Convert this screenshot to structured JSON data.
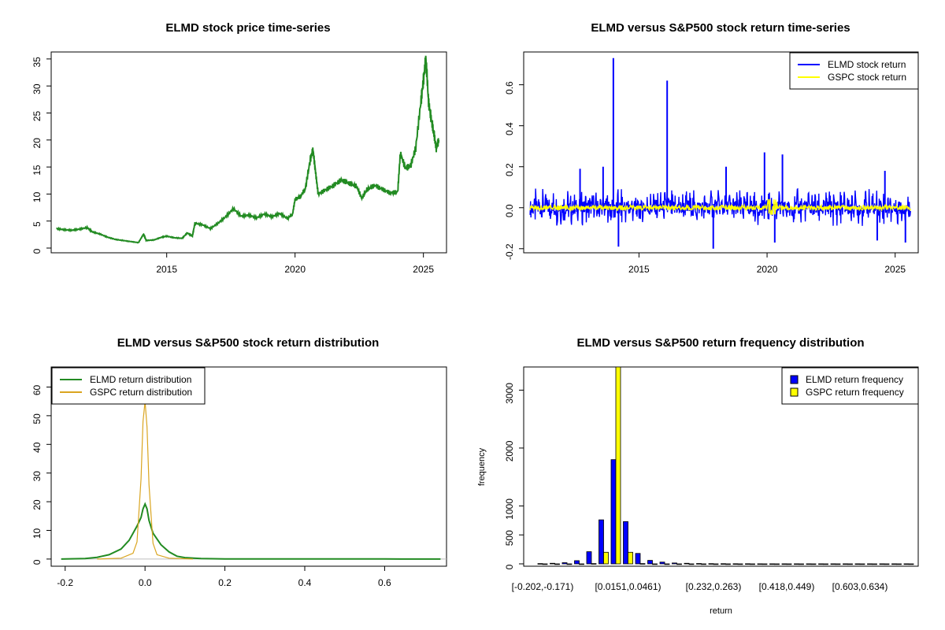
{
  "chart_data": [
    {
      "type": "line",
      "title": "ELMD stock price time-series",
      "xlabel": "",
      "ylabel": "",
      "xlim": [
        2010.5,
        2025.9
      ],
      "ylim": [
        0,
        36
      ],
      "xticks": [
        2015,
        2020,
        2025
      ],
      "xtick_labels": [
        "2015",
        "2020",
        "2025"
      ],
      "yticks": [
        0,
        5,
        10,
        15,
        20,
        25,
        30,
        35
      ],
      "ytick_labels": [
        "0",
        "5",
        "10",
        "15",
        "20",
        "25",
        "30",
        "35"
      ],
      "color": "#228B22",
      "series": [
        {
          "name": "ELMD price",
          "x": [
            2010.7,
            2011.0,
            2011.3,
            2011.6,
            2011.9,
            2012.1,
            2012.4,
            2012.7,
            2013.0,
            2013.3,
            2013.6,
            2013.9,
            2014.1,
            2014.2,
            2014.5,
            2014.8,
            2015.0,
            2015.3,
            2015.6,
            2015.8,
            2016.0,
            2016.1,
            2016.4,
            2016.7,
            2017.0,
            2017.3,
            2017.6,
            2017.9,
            2018.2,
            2018.5,
            2018.8,
            2019.1,
            2019.4,
            2019.7,
            2019.9,
            2020.0,
            2020.2,
            2020.4,
            2020.6,
            2020.7,
            2020.8,
            2020.9,
            2021.2,
            2021.5,
            2021.8,
            2022.1,
            2022.4,
            2022.6,
            2022.8,
            2023.1,
            2023.4,
            2023.7,
            2024.0,
            2024.1,
            2024.3,
            2024.5,
            2024.7,
            2024.9,
            2025.0,
            2025.1,
            2025.2,
            2025.3,
            2025.4,
            2025.5,
            2025.6
          ],
          "values": [
            3.6,
            3.4,
            3.3,
            3.5,
            3.8,
            3.0,
            2.6,
            2.0,
            1.6,
            1.4,
            1.2,
            1.0,
            2.6,
            1.4,
            1.5,
            2.0,
            2.2,
            1.9,
            1.8,
            2.8,
            2.2,
            4.6,
            4.3,
            3.6,
            4.6,
            5.8,
            7.3,
            5.9,
            6.1,
            5.6,
            6.3,
            5.8,
            6.4,
            5.5,
            6.2,
            9.0,
            9.5,
            11.0,
            16.5,
            18.2,
            14.0,
            10.0,
            10.8,
            11.6,
            12.6,
            12.0,
            11.4,
            9.2,
            10.8,
            11.6,
            10.9,
            10.2,
            10.4,
            17.5,
            14.8,
            15.2,
            18.5,
            27.0,
            31.0,
            35.2,
            27.0,
            24.0,
            21.5,
            18.5,
            20.0
          ]
        }
      ]
    },
    {
      "type": "line",
      "title": "ELMD versus S&P500 stock return time-series",
      "xlabel": "",
      "ylabel": "",
      "xlim": [
        2010.5,
        2025.9
      ],
      "ylim": [
        -0.22,
        0.76
      ],
      "xticks": [
        2015,
        2020,
        2025
      ],
      "xtick_labels": [
        "2015",
        "2020",
        "2025"
      ],
      "yticks": [
        -0.2,
        0.0,
        0.2,
        0.4,
        0.6
      ],
      "ytick_labels": [
        "-0.2",
        "0.0",
        "0.2",
        "0.4",
        "0.6"
      ],
      "legend": [
        "ELMD stock return",
        "GSPC stock return"
      ],
      "legend_position": "top-right",
      "colors": [
        "#0000FF",
        "#FFFF00"
      ],
      "spikes": [
        {
          "x": 2014.0,
          "value": 0.73
        },
        {
          "x": 2016.1,
          "value": 0.62
        },
        {
          "x": 2013.6,
          "value": 0.2
        },
        {
          "x": 2012.7,
          "value": 0.19
        },
        {
          "x": 2019.9,
          "value": 0.27
        },
        {
          "x": 2020.6,
          "value": 0.26
        },
        {
          "x": 2018.4,
          "value": 0.2
        },
        {
          "x": 2024.6,
          "value": 0.18
        },
        {
          "x": 2014.2,
          "value": -0.19
        },
        {
          "x": 2017.9,
          "value": -0.2
        },
        {
          "x": 2020.3,
          "value": -0.17
        },
        {
          "x": 2024.3,
          "value": -0.16
        },
        {
          "x": 2025.4,
          "value": -0.17
        }
      ]
    },
    {
      "type": "line",
      "title": "ELMD versus S&P500 stock return distribution",
      "xlabel": "",
      "ylabel": "",
      "xlim": [
        -0.235,
        0.755
      ],
      "ylim": [
        -2.5,
        67
      ],
      "xticks": [
        -0.2,
        0.0,
        0.2,
        0.4,
        0.6
      ],
      "xtick_labels": [
        "-0.2",
        "0.0",
        "0.2",
        "0.4",
        "0.6"
      ],
      "yticks": [
        0,
        10,
        20,
        30,
        40,
        50,
        60
      ],
      "ytick_labels": [
        "0",
        "10",
        "20",
        "30",
        "40",
        "50",
        "60"
      ],
      "legend": [
        "ELMD return distribution",
        "GSPC return distribution"
      ],
      "legend_position": "top-left",
      "series": [
        {
          "name": "ELMD return distribution",
          "color": "#228B22",
          "x": [
            -0.21,
            -0.15,
            -0.12,
            -0.09,
            -0.06,
            -0.04,
            -0.02,
            -0.01,
            -0.005,
            0.0,
            0.005,
            0.01,
            0.02,
            0.04,
            0.06,
            0.08,
            0.1,
            0.14,
            0.2,
            0.4,
            0.6,
            0.74
          ],
          "values": [
            0,
            0.2,
            0.6,
            1.5,
            3.5,
            6.5,
            11.5,
            14.5,
            17.5,
            19.2,
            17.5,
            13.5,
            9.0,
            5.0,
            2.5,
            1.0,
            0.5,
            0.2,
            0.05,
            0.02,
            0.02,
            0
          ]
        },
        {
          "name": "GSPC return distribution",
          "color": "#DAA520",
          "x": [
            -0.12,
            -0.06,
            -0.03,
            -0.02,
            -0.01,
            -0.005,
            0.0,
            0.005,
            0.01,
            0.02,
            0.03,
            0.06,
            0.12
          ],
          "values": [
            0,
            0.3,
            2.0,
            6.0,
            28.0,
            48.0,
            55.0,
            46.0,
            26.0,
            5.5,
            1.5,
            0.3,
            0
          ]
        }
      ]
    },
    {
      "type": "bar",
      "title": "ELMD versus S&P500 return frequency distribution",
      "xlabel": "return",
      "ylabel": "frequency",
      "ylim": [
        0,
        3400
      ],
      "yticks": [
        0,
        500,
        1000,
        2000,
        3000
      ],
      "ytick_labels": [
        "0",
        "500",
        "1000",
        "2000",
        "3000"
      ],
      "category_labels": [
        "[-0.202,-0.171)",
        "[0.0151,0.0461)",
        "[0.232,0.263)",
        "[0.418,0.449)",
        "[0.603,0.634)"
      ],
      "category_label_positions": [
        0,
        7,
        14,
        20,
        26
      ],
      "legend": [
        "ELMD return frequency",
        "GSPC return frequency"
      ],
      "legend_position": "top-right",
      "colors": [
        "#0000FF",
        "#FFFF00"
      ],
      "series": [
        {
          "name": "ELMD return frequency",
          "values": [
            5,
            10,
            20,
            55,
            210,
            760,
            1800,
            730,
            180,
            60,
            30,
            15,
            10,
            6,
            4,
            3,
            2,
            2,
            1,
            1,
            1,
            1,
            1,
            1,
            1,
            1,
            1,
            1,
            1,
            1,
            1
          ]
        },
        {
          "name": "GSPC return frequency",
          "values": [
            0,
            0,
            0,
            0,
            5,
            200,
            3400,
            200,
            5,
            0,
            0,
            0,
            0,
            0,
            0,
            0,
            0,
            0,
            0,
            0,
            0,
            0,
            0,
            0,
            0,
            0,
            0,
            0,
            0,
            0,
            0
          ]
        }
      ]
    }
  ]
}
